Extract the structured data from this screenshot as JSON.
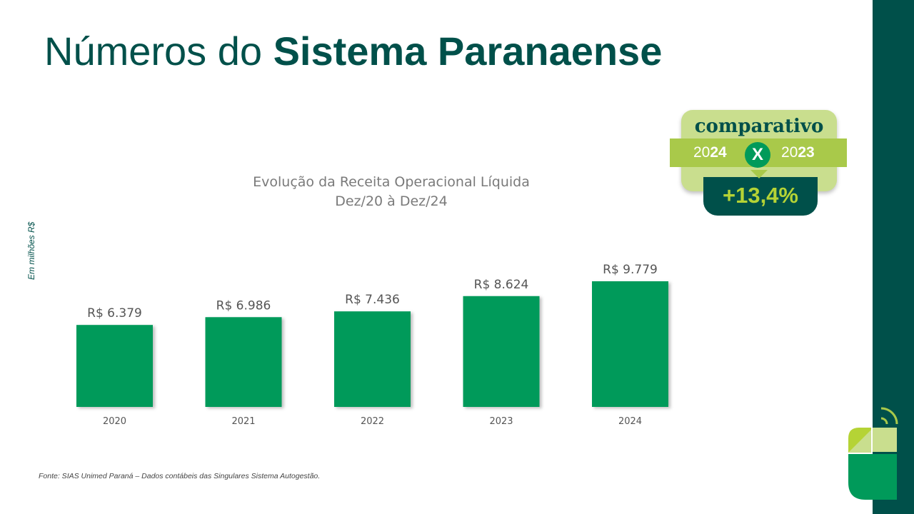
{
  "page": {
    "title_regular": "Números do ",
    "title_bold": "Sistema Paranaense",
    "y_note": "Em milhões R$",
    "source": "Fonte: SIAS Unimed Paraná – Dados contábeis das Singulares Sistema Autogestão."
  },
  "badge": {
    "word": "comparativo",
    "year_a_prefix": "20",
    "year_a_suffix": "24",
    "x": "X",
    "year_b_prefix": "20",
    "year_b_suffix": "23",
    "change": "+13,4%"
  },
  "colors": {
    "brand_dark": "#00504a",
    "bar": "#009a5a",
    "accent_light": "#c9de8e",
    "accent_mid": "#a9c94a",
    "accent_bright": "#b5d335"
  },
  "chart_data": {
    "type": "bar",
    "title": [
      "Evolução da Receita Operacional Líquida",
      "Dez/20 à Dez/24"
    ],
    "categories": [
      "2020",
      "2021",
      "2022",
      "2023",
      "2024"
    ],
    "values": [
      6379,
      6986,
      7436,
      8624,
      9779
    ],
    "value_labels": [
      "R$ 6.379",
      "R$ 6.986",
      "R$ 7.436",
      "R$ 8.624",
      "R$ 9.779"
    ],
    "xlabel": "",
    "ylabel": "Em milhões R$",
    "grid": false,
    "legend": "none"
  }
}
